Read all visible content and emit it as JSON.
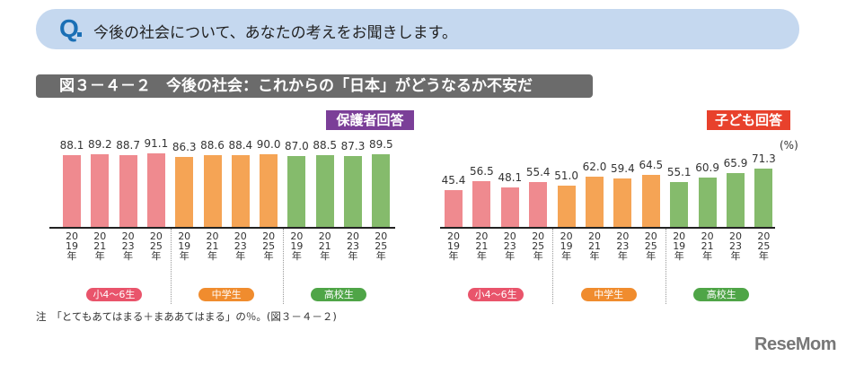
{
  "question": {
    "mark": "Q",
    "text": "今後の社会について、あなたの考えをお聞きします。"
  },
  "figure_title": "図３－４－２　今後の社会：これからの「日本」がどうなるか不安だ",
  "note": "注　「とてもあてはまる＋まああてはまる」の％。(図３－４－２)",
  "logo": "ReseMom",
  "colors": {
    "elementary": "#ef8a8f",
    "junior_high": "#f5a455",
    "high_school": "#85bb6c",
    "elementary_pill": "#e9546b",
    "junior_high_pill": "#f08c2e",
    "high_school_pill": "#4fa547",
    "parent_badge": "#7b3f98",
    "child_badge": "#e8412c"
  },
  "chart_data": [
    {
      "type": "bar",
      "title": "保護者回答",
      "groups": [
        "小4～6生",
        "中学生",
        "高校生"
      ],
      "categories": [
        "2019年",
        "2021年",
        "2023年",
        "2025年"
      ],
      "series": [
        {
          "name": "小4～6生",
          "values": [
            88.1,
            89.2,
            88.7,
            91.1
          ]
        },
        {
          "name": "中学生",
          "values": [
            86.3,
            88.6,
            88.4,
            90.0
          ]
        },
        {
          "name": "高校生",
          "values": [
            87.0,
            88.5,
            87.3,
            89.5
          ]
        }
      ],
      "ylim": [
        0,
        100
      ]
    },
    {
      "type": "bar",
      "title": "子ども回答",
      "unit": "(%)",
      "groups": [
        "小4～6生",
        "中学生",
        "高校生"
      ],
      "categories": [
        "2019年",
        "2021年",
        "2023年",
        "2025年"
      ],
      "series": [
        {
          "name": "小4～6生",
          "values": [
            45.4,
            56.5,
            48.1,
            55.4
          ]
        },
        {
          "name": "中学生",
          "values": [
            51.0,
            62.0,
            59.4,
            64.5
          ]
        },
        {
          "name": "高校生",
          "values": [
            55.1,
            60.9,
            65.9,
            71.3
          ]
        }
      ],
      "ylim": [
        0,
        100
      ]
    }
  ]
}
